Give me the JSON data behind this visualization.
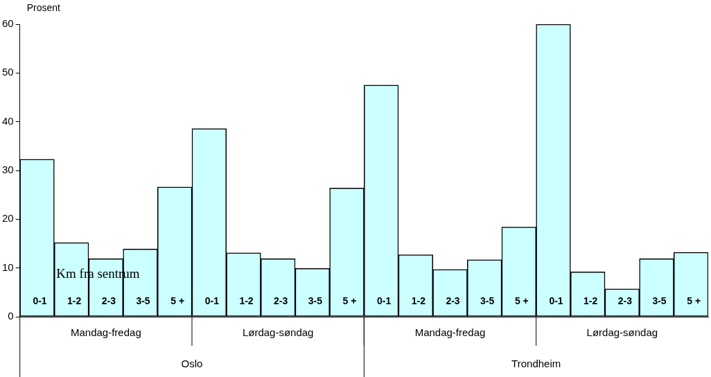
{
  "chart_data": {
    "type": "bar",
    "ylabel": "Prosent",
    "categories": [
      "0-1",
      "1-2",
      "2-3",
      "3-5",
      "5 +",
      "0-1",
      "1-2",
      "2-3",
      "3-5",
      "5 +",
      "0-1",
      "1-2",
      "2-3",
      "3-5",
      "5 +",
      "0-1",
      "1-2",
      "2-3",
      "3-5",
      "5 +"
    ],
    "values": [
      32.3,
      15.2,
      11.9,
      13.9,
      26.6,
      38.6,
      13.1,
      11.9,
      9.9,
      26.4,
      47.5,
      12.7,
      9.7,
      11.7,
      18.4,
      60.0,
      9.2,
      5.7,
      11.9,
      13.2
    ],
    "color": "#ccffff",
    "ylim": [
      0,
      60
    ],
    "yticks": [
      0,
      10,
      20,
      30,
      40,
      50,
      60
    ],
    "grid": false,
    "legend": false,
    "annotations": [
      "Km fra sentrum",
      "Mandag-fredag",
      "Lørdag-søndag",
      "Mandag-fredag",
      "Lørdag-søndag",
      "Oslo",
      "Trondheim"
    ]
  }
}
